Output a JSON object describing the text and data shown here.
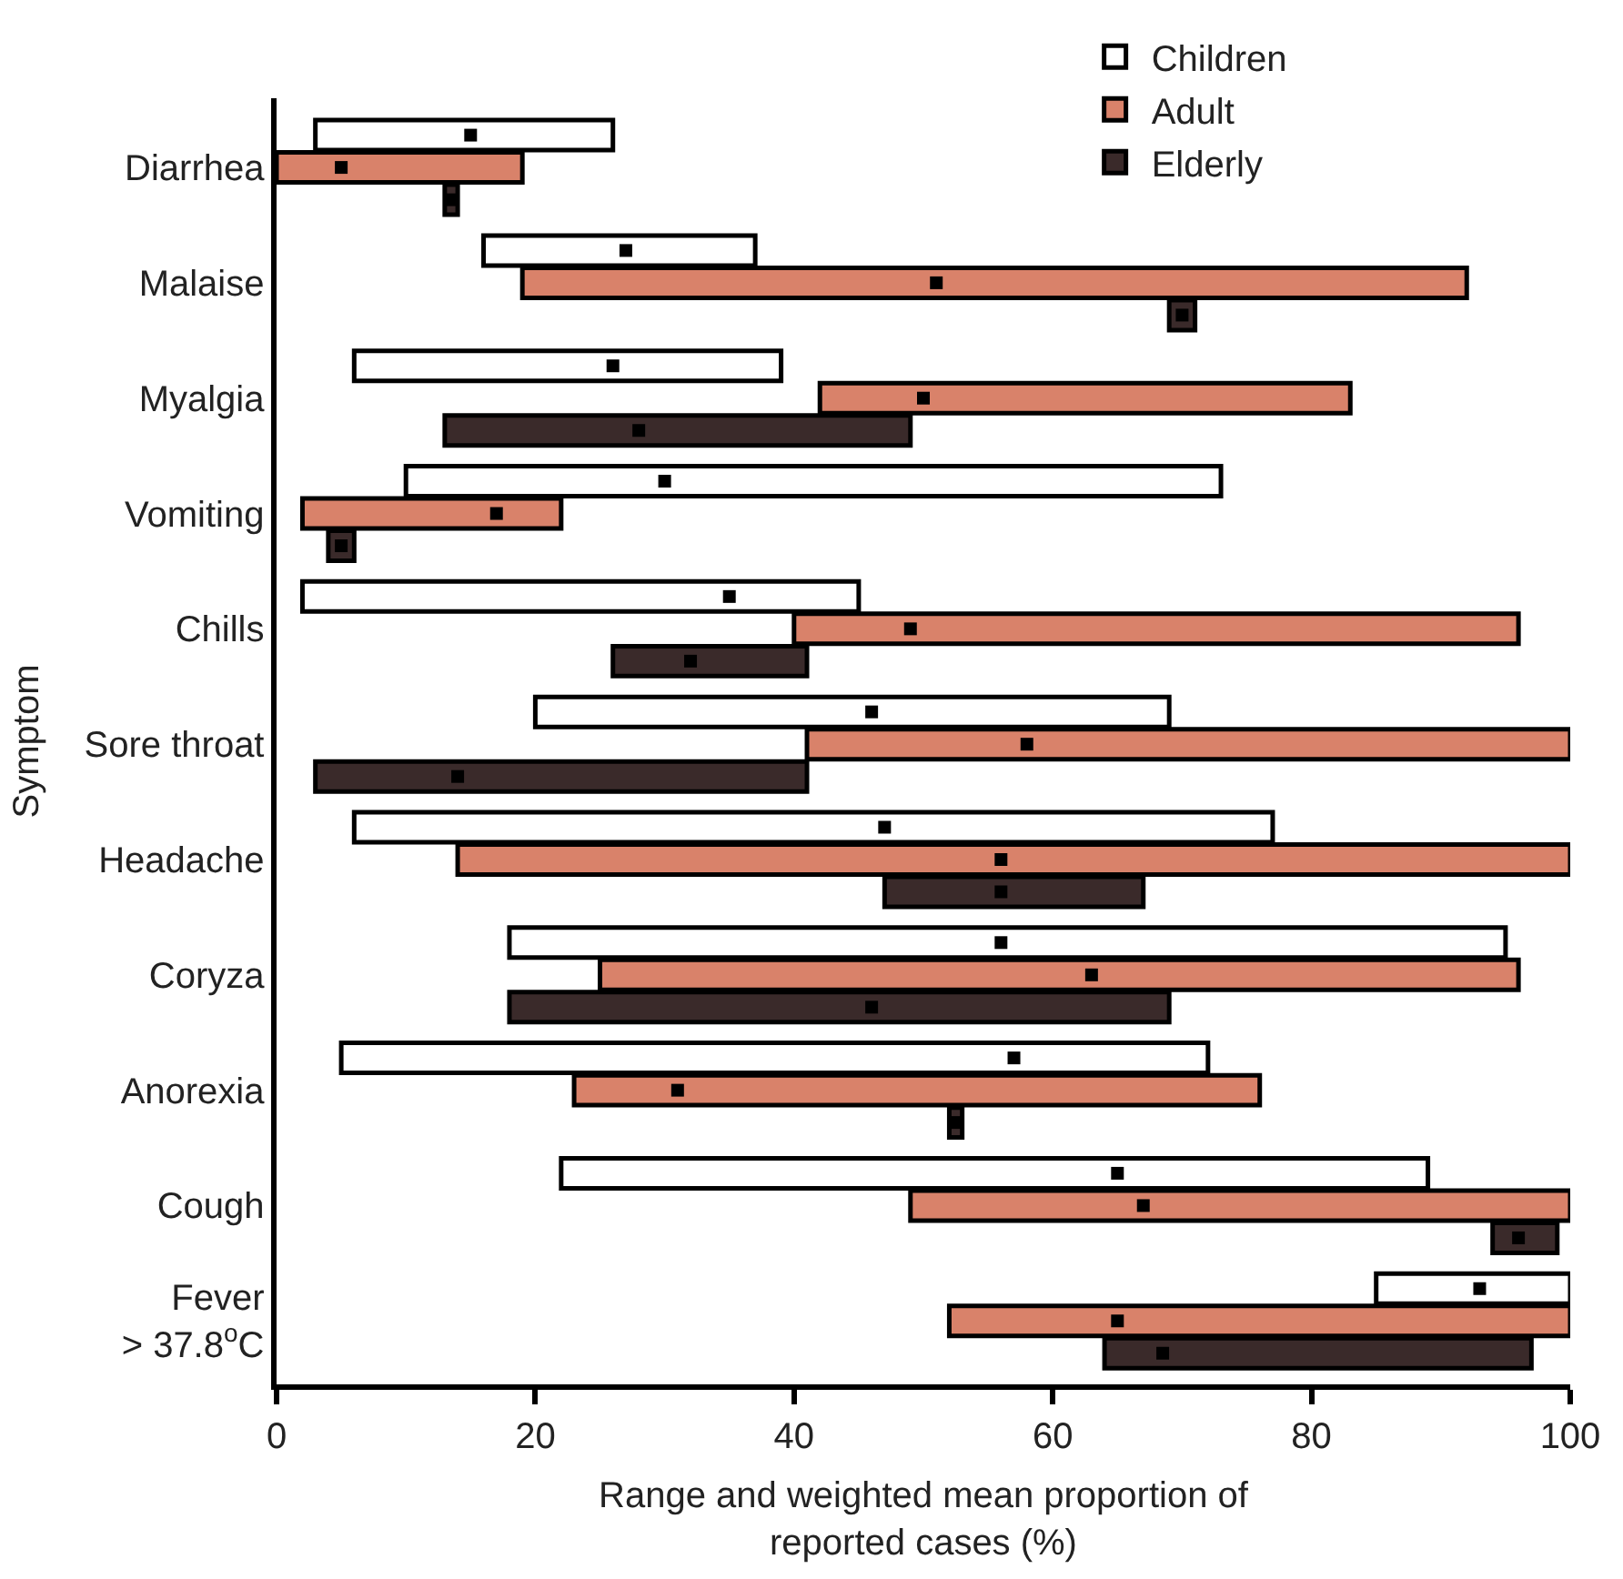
{
  "chart_data": {
    "type": "bar",
    "orientation": "horizontal",
    "xlabel": "Range and weighted mean proportion of\nreported cases (%)",
    "ylabel": "Symptom",
    "categories": [
      "Diarrhea",
      "Malaise",
      "Myalgia",
      "Vomiting",
      "Chills",
      "Sore throat",
      "Headache",
      "Coryza",
      "Anorexia",
      "Cough",
      "Fever\n> 37.8$^{o}$C"
    ],
    "series": [
      {
        "name": "Children",
        "color": "#ffffff",
        "base": [
          3,
          16,
          6,
          10,
          2,
          20,
          6,
          18,
          5,
          22,
          85
        ],
        "values": [
          23,
          21,
          33,
          63,
          43,
          49,
          71,
          77,
          67,
          67,
          15
        ]
      },
      {
        "name": "Adult",
        "color": "#d9826a",
        "base": [
          0,
          19,
          42,
          2,
          40,
          41,
          14,
          25,
          23,
          49,
          52
        ],
        "values": [
          19,
          73,
          41,
          20,
          56,
          59,
          86,
          71,
          53,
          51,
          48
        ]
      },
      {
        "name": "Elderly",
        "color": "#3a2a2a",
        "base": [
          13,
          69,
          13,
          4,
          26,
          3,
          47,
          18,
          52,
          94,
          64
        ],
        "values": [
          1,
          2,
          36,
          2,
          15,
          38,
          20,
          51,
          1,
          5,
          33
        ]
      },
      {
        "type": "scatter",
        "color": "#000000",
        "values": [
          15,
          27,
          26,
          30,
          35,
          46,
          47,
          56,
          57,
          65,
          93
        ]
      },
      {
        "type": "scatter",
        "color": "#000000",
        "values": [
          5,
          51,
          50,
          17,
          49,
          58,
          56,
          63,
          31,
          67,
          65
        ]
      },
      {
        "type": "scatter",
        "color": "#000000",
        "values": [
          13.5,
          70,
          28,
          5,
          32,
          14,
          56,
          46,
          52.5,
          96,
          68.5
        ]
      }
    ],
    "marker": "square",
    "xlim": [
      0,
      100
    ],
    "xticks": [
      0,
      20,
      40,
      60,
      80,
      100
    ],
    "legend": "top right"
  }
}
